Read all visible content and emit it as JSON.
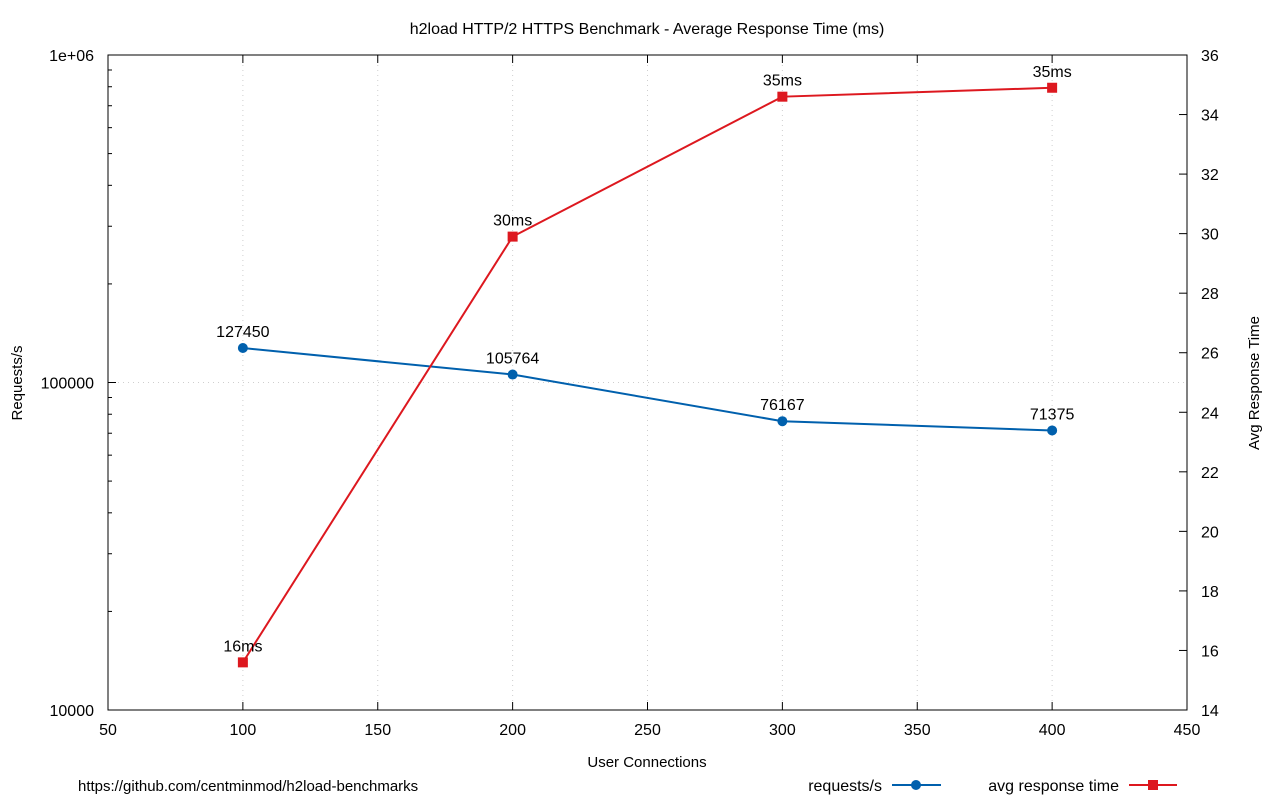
{
  "chart_data": {
    "type": "line",
    "title": "h2load HTTP/2 HTTPS Benchmark - Average Response Time (ms)",
    "xlabel": "User Connections",
    "ylabel": "Requests/s",
    "y2label": "Avg Response Time",
    "xlim": [
      50,
      450
    ],
    "xticks": [
      "50",
      "100",
      "150",
      "200",
      "250",
      "300",
      "350",
      "400",
      "450"
    ],
    "ylim": [
      10000,
      1000000
    ],
    "yscale": "log",
    "yticks": [
      "10000",
      "100000",
      "1e+06"
    ],
    "y2lim": [
      14,
      36
    ],
    "y2ticks": [
      "14",
      "16",
      "18",
      "20",
      "22",
      "24",
      "26",
      "28",
      "30",
      "32",
      "34",
      "36"
    ],
    "grid": true,
    "legend_position": "bottom-right",
    "series": [
      {
        "name": "requests/s",
        "axis": "left",
        "color": "#0060ad",
        "marker": "circle",
        "points": [
          {
            "x": 100,
            "y": 127450,
            "label": "127450"
          },
          {
            "x": 200,
            "y": 105764,
            "label": "105764"
          },
          {
            "x": 300,
            "y": 76167,
            "label": "76167"
          },
          {
            "x": 400,
            "y": 71375,
            "label": "71375"
          }
        ]
      },
      {
        "name": "avg response time",
        "axis": "right",
        "color": "#dd181f",
        "marker": "square",
        "points": [
          {
            "x": 100,
            "y": 15.6,
            "label": "16ms"
          },
          {
            "x": 200,
            "y": 29.9,
            "label": "30ms"
          },
          {
            "x": 300,
            "y": 34.6,
            "label": "35ms"
          },
          {
            "x": 400,
            "y": 34.9,
            "label": "35ms"
          }
        ]
      }
    ],
    "footer_note": "https://github.com/centminmod/h2load-benchmarks"
  }
}
